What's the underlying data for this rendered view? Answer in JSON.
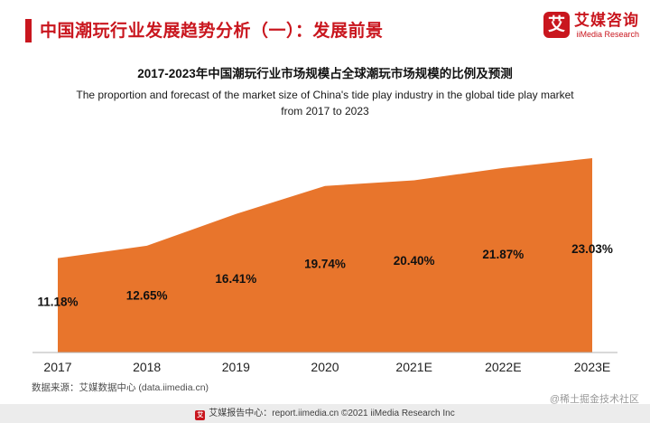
{
  "header": {
    "title": "中国潮玩行业发展趋势分析（一）：发展前景",
    "logo": {
      "mark": "艾",
      "name_cn": "艾媒咨询",
      "name_en": "iiMedia Research"
    }
  },
  "chart": {
    "title_cn": "2017-2023年中国潮玩行业市场规模占全球潮玩市场规模的比例及预测",
    "subtitle_en_line1": "The proportion and forecast of the market size of China's tide play industry in the global tide play market",
    "subtitle_en_line2": "from 2017 to 2023"
  },
  "chart_data": {
    "type": "area",
    "title": "2017-2023年中国潮玩行业市场规模占全球潮玩市场规模的比例及预测",
    "categories": [
      "2017",
      "2018",
      "2019",
      "2020",
      "2021E",
      "2022E",
      "2023E"
    ],
    "values": [
      11.18,
      12.65,
      16.41,
      19.74,
      20.4,
      21.87,
      23.03
    ],
    "labels": [
      "11.18%",
      "12.65%",
      "16.41%",
      "19.74%",
      "20.40%",
      "21.87%",
      "23.03%"
    ],
    "xlabel": "",
    "ylabel": "",
    "ylim": [
      0,
      23.03
    ],
    "grid": false,
    "legend": "none",
    "area_color": "#E8752C"
  },
  "source_note": "数据来源：艾媒数据中心 (data.iimedia.cn)",
  "watermark": "@稀土掘金技术社区",
  "footer": {
    "icon_glyph": "艾",
    "text": "艾媒报告中心：report.iimedia.cn ©2021 iiMedia Research Inc"
  },
  "colors": {
    "accent_red": "#C9161E",
    "area_orange": "#E8752C",
    "axis_line": "#b3b3b3"
  }
}
